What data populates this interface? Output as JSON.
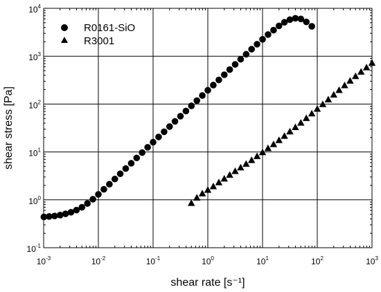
{
  "chart_data": {
    "type": "scatter",
    "xscale": "log",
    "yscale": "log",
    "xlim": [
      0.001,
      1000
    ],
    "ylim": [
      0.1,
      10000
    ],
    "grid": true,
    "legend_position": "top-left",
    "xlabel": "shear rate [s⁻¹]",
    "ylabel": "shear stress [Pa]",
    "x_ticks": [
      {
        "base": "10",
        "exp": "-3",
        "value": 0.001
      },
      {
        "base": "10",
        "exp": "-2",
        "value": 0.01
      },
      {
        "base": "10",
        "exp": "-1",
        "value": 0.1
      },
      {
        "base": "10",
        "exp": "0",
        "value": 1
      },
      {
        "base": "10",
        "exp": "1",
        "value": 10
      },
      {
        "base": "10",
        "exp": "2",
        "value": 100
      },
      {
        "base": "10",
        "exp": "3",
        "value": 1000
      }
    ],
    "y_ticks": [
      {
        "base": "10",
        "exp": "-1",
        "value": 0.1
      },
      {
        "base": "10",
        "exp": "0",
        "value": 1
      },
      {
        "base": "10",
        "exp": "1",
        "value": 10
      },
      {
        "base": "10",
        "exp": "2",
        "value": 100
      },
      {
        "base": "10",
        "exp": "3",
        "value": 1000
      },
      {
        "base": "10",
        "exp": "4",
        "value": 10000
      }
    ],
    "series": [
      {
        "name": "R0161-SiO",
        "marker": "circle",
        "color": "#000000",
        "points": [
          [
            0.00101,
            0.44
          ],
          [
            0.00126,
            0.45
          ],
          [
            0.00159,
            0.46
          ],
          [
            0.002,
            0.48
          ],
          [
            0.00251,
            0.51
          ],
          [
            0.00316,
            0.55
          ],
          [
            0.00398,
            0.61
          ],
          [
            0.00501,
            0.7
          ],
          [
            0.00631,
            0.84
          ],
          [
            0.00794,
            1.03
          ],
          [
            0.01,
            1.3
          ],
          [
            0.0126,
            1.66
          ],
          [
            0.0159,
            2.12
          ],
          [
            0.02,
            2.72
          ],
          [
            0.0251,
            3.5
          ],
          [
            0.0316,
            4.5
          ],
          [
            0.0398,
            5.8
          ],
          [
            0.0501,
            7.5
          ],
          [
            0.0631,
            9.7
          ],
          [
            0.0794,
            12.5
          ],
          [
            0.1,
            16
          ],
          [
            0.126,
            20.6
          ],
          [
            0.159,
            26.4
          ],
          [
            0.2,
            33.9
          ],
          [
            0.251,
            43.5
          ],
          [
            0.316,
            55.8
          ],
          [
            0.398,
            71.6
          ],
          [
            0.501,
            91.8
          ],
          [
            0.631,
            118
          ],
          [
            0.794,
            151
          ],
          [
            1.0,
            194
          ],
          [
            1.26,
            249
          ],
          [
            1.59,
            319
          ],
          [
            2.0,
            410
          ],
          [
            2.51,
            525
          ],
          [
            3.16,
            673
          ],
          [
            3.98,
            862
          ],
          [
            5.01,
            1100
          ],
          [
            6.31,
            1400
          ],
          [
            7.94,
            1780
          ],
          [
            10.0,
            2250
          ],
          [
            12.6,
            2830
          ],
          [
            15.9,
            3500
          ],
          [
            20.0,
            4300
          ],
          [
            25.1,
            5100
          ],
          [
            31.6,
            5800
          ],
          [
            39.8,
            6200
          ],
          [
            50.1,
            6000
          ],
          [
            63.1,
            5200
          ],
          [
            79.4,
            4200
          ]
        ]
      },
      {
        "name": "R3001",
        "marker": "triangle",
        "color": "#000000",
        "points": [
          [
            0.5,
            0.85
          ],
          [
            0.631,
            1.1
          ],
          [
            0.794,
            1.35
          ],
          [
            1.0,
            1.6
          ],
          [
            1.26,
            1.9
          ],
          [
            1.59,
            2.3
          ],
          [
            2.0,
            2.75
          ],
          [
            2.51,
            3.3
          ],
          [
            3.16,
            3.95
          ],
          [
            3.98,
            4.7
          ],
          [
            5.01,
            5.6
          ],
          [
            6.31,
            6.7
          ],
          [
            7.94,
            8.1
          ],
          [
            10.0,
            9.8
          ],
          [
            12.6,
            11.9
          ],
          [
            15.9,
            14.4
          ],
          [
            20.0,
            17.5
          ],
          [
            25.1,
            21.5
          ],
          [
            31.6,
            26.5
          ],
          [
            39.8,
            32.7
          ],
          [
            50.1,
            40.5
          ],
          [
            63.1,
            50.5
          ],
          [
            79.4,
            63
          ],
          [
            100,
            79
          ],
          [
            126,
            99
          ],
          [
            159,
            124
          ],
          [
            200,
            156
          ],
          [
            251,
            195
          ],
          [
            316,
            245
          ],
          [
            398,
            305
          ],
          [
            501,
            380
          ],
          [
            631,
            470
          ],
          [
            794,
            580
          ],
          [
            1000,
            720
          ]
        ]
      }
    ]
  }
}
